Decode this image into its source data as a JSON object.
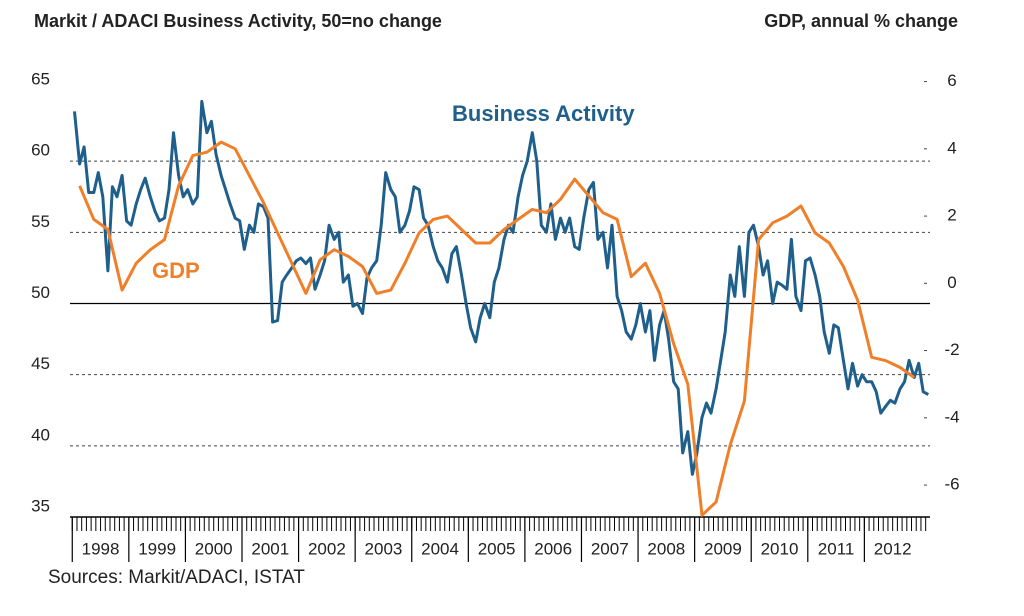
{
  "chart_data": {
    "type": "line",
    "title": "Markit / ADACI  Business Activity, 50=no change",
    "y2_title": "GDP, annual % change",
    "source": "Sources: Markit/ADACI, ISTAT",
    "annotations": [
      {
        "text": "Business Activity",
        "series": 0
      },
      {
        "text": "GDP",
        "series": 1
      }
    ],
    "xlim": [
      1997.96,
      2013.16
    ],
    "xticks": [
      {
        "value": 1998.5,
        "label": "1998"
      },
      {
        "value": 1999.5,
        "label": "1999"
      },
      {
        "value": 2000.5,
        "label": "2000"
      },
      {
        "value": 2001.5,
        "label": "2001"
      },
      {
        "value": 2002.5,
        "label": "2002"
      },
      {
        "value": 2003.5,
        "label": "2003"
      },
      {
        "value": 2004.5,
        "label": "2004"
      },
      {
        "value": 2005.5,
        "label": "2005"
      },
      {
        "value": 2006.5,
        "label": "2006"
      },
      {
        "value": 2007.5,
        "label": "2007"
      },
      {
        "value": 2008.5,
        "label": "2008"
      },
      {
        "value": 2009.5,
        "label": "2009"
      },
      {
        "value": 2010.5,
        "label": "2010"
      },
      {
        "value": 2011.5,
        "label": "2011"
      },
      {
        "value": 2012.5,
        "label": "2012"
      }
    ],
    "ylim": [
      35,
      65
    ],
    "yticks": [
      35,
      40,
      45,
      50,
      55,
      60,
      65
    ],
    "y2lim": [
      -6.95,
      5.75
    ],
    "y2ticks": [
      -6,
      -4,
      -2,
      0,
      2,
      4,
      6
    ],
    "reference_line": 50,
    "grid": true,
    "series": [
      {
        "name": "Business Activity",
        "color": "#1f5f8b",
        "x": [
          1998.04,
          1998.13,
          1998.21,
          1998.29,
          1998.38,
          1998.46,
          1998.54,
          1998.63,
          1998.71,
          1998.79,
          1998.88,
          1998.96,
          1999.04,
          1999.13,
          1999.21,
          1999.29,
          1999.38,
          1999.46,
          1999.54,
          1999.63,
          1999.71,
          1999.79,
          1999.88,
          1999.96,
          2000.04,
          2000.13,
          2000.21,
          2000.29,
          2000.38,
          2000.46,
          2000.54,
          2000.63,
          2000.71,
          2000.79,
          2000.88,
          2000.96,
          2001.04,
          2001.13,
          2001.21,
          2001.29,
          2001.38,
          2001.46,
          2001.54,
          2001.63,
          2001.71,
          2001.79,
          2001.88,
          2001.96,
          2002.04,
          2002.13,
          2002.21,
          2002.29,
          2002.38,
          2002.46,
          2002.54,
          2002.63,
          2002.71,
          2002.79,
          2002.88,
          2002.96,
          2003.04,
          2003.13,
          2003.21,
          2003.29,
          2003.38,
          2003.46,
          2003.54,
          2003.63,
          2003.71,
          2003.79,
          2003.88,
          2003.96,
          2004.04,
          2004.13,
          2004.21,
          2004.29,
          2004.38,
          2004.46,
          2004.54,
          2004.63,
          2004.71,
          2004.79,
          2004.88,
          2004.96,
          2005.04,
          2005.13,
          2005.21,
          2005.29,
          2005.38,
          2005.46,
          2005.54,
          2005.63,
          2005.71,
          2005.79,
          2005.88,
          2005.96,
          2006.04,
          2006.13,
          2006.21,
          2006.29,
          2006.38,
          2006.46,
          2006.54,
          2006.63,
          2006.71,
          2006.79,
          2006.88,
          2006.96,
          2007.04,
          2007.13,
          2007.21,
          2007.29,
          2007.38,
          2007.46,
          2007.54,
          2007.63,
          2007.71,
          2007.79,
          2007.88,
          2007.96,
          2008.04,
          2008.13,
          2008.21,
          2008.29,
          2008.38,
          2008.46,
          2008.54,
          2008.63,
          2008.71,
          2008.79,
          2008.88,
          2008.96,
          2009.04,
          2009.13,
          2009.21,
          2009.29,
          2009.38,
          2009.46,
          2009.54,
          2009.63,
          2009.71,
          2009.79,
          2009.88,
          2009.96,
          2010.04,
          2010.13,
          2010.21,
          2010.29,
          2010.38,
          2010.46,
          2010.54,
          2010.63,
          2010.71,
          2010.79,
          2010.88,
          2010.96,
          2011.04,
          2011.13,
          2011.21,
          2011.29,
          2011.38,
          2011.46,
          2011.54,
          2011.63,
          2011.71,
          2011.79,
          2011.88,
          2011.96,
          2012.04,
          2012.13,
          2012.21,
          2012.29,
          2012.38,
          2012.46,
          2012.54,
          2012.63,
          2012.71,
          2012.79,
          2012.88,
          2012.96,
          2013.04,
          2013.13
        ],
        "values": [
          63.5,
          59.8,
          61.0,
          57.8,
          57.8,
          59.2,
          57.5,
          52.3,
          58.2,
          57.5,
          59.0,
          55.8,
          55.5,
          57.0,
          58.0,
          58.8,
          57.5,
          56.5,
          55.8,
          56.0,
          58.0,
          62.0,
          59.0,
          57.5,
          58.0,
          57.0,
          57.5,
          64.2,
          62.0,
          62.8,
          60.5,
          59.0,
          58.0,
          57.0,
          56.0,
          55.8,
          53.8,
          55.5,
          55.0,
          57.0,
          56.8,
          56.0,
          48.7,
          48.8,
          51.5,
          52.0,
          52.5,
          53.0,
          53.2,
          52.8,
          53.2,
          51.0,
          52.0,
          53.0,
          55.5,
          54.5,
          55.0,
          51.5,
          52.0,
          49.8,
          50.0,
          49.3,
          51.8,
          52.5,
          53.0,
          55.5,
          59.2,
          58.0,
          57.5,
          55.0,
          55.5,
          56.5,
          58.2,
          58.0,
          56.0,
          55.5,
          54.0,
          53.0,
          52.5,
          51.5,
          53.5,
          54.0,
          52.0,
          50.0,
          48.3,
          47.3,
          49.0,
          50.0,
          49.0,
          51.5,
          52.5,
          54.5,
          55.5,
          55.0,
          57.5,
          59.0,
          60.0,
          62.0,
          60.0,
          55.5,
          55.0,
          57.0,
          54.5,
          56.0,
          55.0,
          56.0,
          54.0,
          53.8,
          56.0,
          58.0,
          58.5,
          54.5,
          55.0,
          52.5,
          55.5,
          50.5,
          49.5,
          48.0,
          47.5,
          48.5,
          50.0,
          48.0,
          49.5,
          46.0,
          48.5,
          49.5,
          47.5,
          44.5,
          44.0,
          39.5,
          41.0,
          38.0,
          39.5,
          42.0,
          43.0,
          42.3,
          44.0,
          46.0,
          48.0,
          52.0,
          50.5,
          54.0,
          50.5,
          55.0,
          55.5,
          54.0,
          52.0,
          53.0,
          50.0,
          51.5,
          51.3,
          51.0,
          54.5,
          50.5,
          49.5,
          53.0,
          53.2,
          52.0,
          50.5,
          48.0,
          46.5,
          48.5,
          48.3,
          46.0,
          44.0,
          45.8,
          44.2,
          45.0,
          44.5,
          44.5,
          43.8,
          42.3,
          42.8,
          43.2,
          43.0,
          44.0,
          44.5,
          46.0,
          44.8,
          45.8,
          43.8,
          43.6
        ]
      },
      {
        "name": "GDP",
        "color": "#f07f2a",
        "axis": "y2",
        "x": [
          1998.13,
          1998.38,
          1998.63,
          1998.88,
          1999.13,
          1999.38,
          1999.63,
          1999.88,
          2000.13,
          2000.38,
          2000.63,
          2000.88,
          2001.13,
          2001.38,
          2001.63,
          2001.88,
          2002.13,
          2002.38,
          2002.63,
          2002.88,
          2003.13,
          2003.38,
          2003.63,
          2003.88,
          2004.13,
          2004.38,
          2004.63,
          2004.88,
          2005.13,
          2005.38,
          2005.63,
          2005.88,
          2006.13,
          2006.38,
          2006.63,
          2006.88,
          2007.13,
          2007.38,
          2007.63,
          2007.88,
          2008.13,
          2008.38,
          2008.63,
          2008.88,
          2009.13,
          2009.38,
          2009.63,
          2009.88,
          2010.13,
          2010.38,
          2010.63,
          2010.88,
          2011.13,
          2011.38,
          2011.63,
          2011.88,
          2012.13,
          2012.38,
          2012.63,
          2012.88
        ],
        "values": [
          2.9,
          1.9,
          1.6,
          -0.2,
          0.6,
          1.0,
          1.3,
          2.9,
          3.8,
          3.9,
          4.2,
          4.0,
          3.2,
          2.4,
          1.5,
          0.6,
          -0.3,
          0.7,
          1.0,
          0.8,
          0.5,
          -0.3,
          -0.2,
          0.6,
          1.5,
          1.9,
          2.0,
          1.6,
          1.2,
          1.2,
          1.6,
          1.9,
          2.2,
          2.1,
          2.5,
          3.1,
          2.6,
          2.1,
          1.9,
          0.2,
          0.6,
          -0.3,
          -1.8,
          -3.0,
          -6.9,
          -6.5,
          -4.8,
          -3.5,
          1.3,
          1.8,
          2.0,
          2.3,
          1.5,
          1.2,
          0.5,
          -0.5,
          -2.2,
          -2.3,
          -2.5,
          -2.8
        ]
      }
    ]
  }
}
